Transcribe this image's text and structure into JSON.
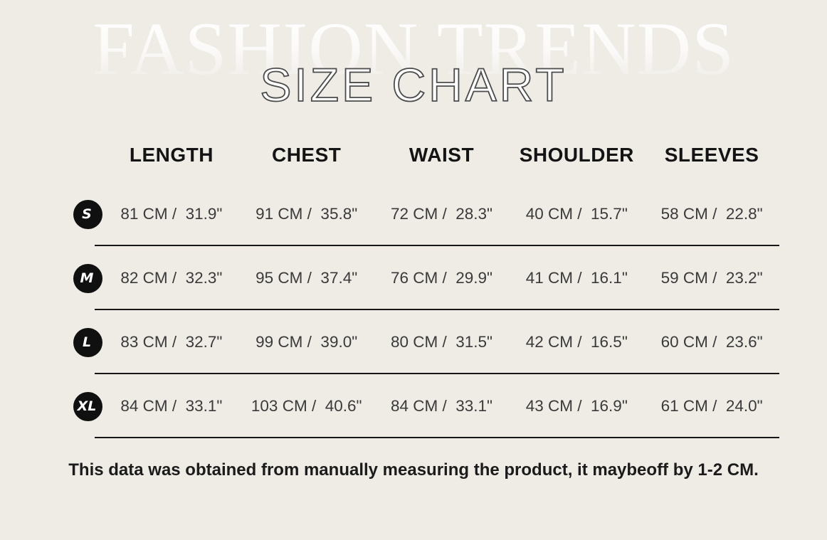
{
  "header": {
    "watermark": "FASHION TRENDS",
    "title": "SIZE CHART"
  },
  "table": {
    "columns": [
      "LENGTH",
      "CHEST",
      "WAIST",
      "SHOULDER",
      "SLEEVES"
    ],
    "rows": [
      {
        "size": "S",
        "values": [
          "81 CM /  31.9\"",
          "91 CM /  35.8\"",
          "72 CM /  28.3\"",
          "40 CM /  15.7\"",
          "58 CM /  22.8\""
        ]
      },
      {
        "size": "M",
        "values": [
          "82 CM /  32.3\"",
          "95 CM /  37.4\"",
          "76 CM /  29.9\"",
          "41 CM /  16.1\"",
          "59 CM /  23.2\""
        ]
      },
      {
        "size": "L",
        "values": [
          "83 CM /  32.7\"",
          "99 CM /  39.0\"",
          "80 CM /  31.5\"",
          "42 CM /  16.5\"",
          "60 CM /  23.6\""
        ]
      },
      {
        "size": "XL",
        "values": [
          "84 CM /  33.1\"",
          "103 CM /  40.6\"",
          "84 CM /  33.1\"",
          "43 CM /  16.9\"",
          "61 CM /  24.0\""
        ]
      }
    ]
  },
  "footer": {
    "note": "This data was obtained from manually measuring the product, it maybeoff by 1-2 CM."
  },
  "colors": {
    "background": "#efece6",
    "heading_outline": "#4c4c4c",
    "badge_background": "#101010",
    "badge_text": "#ffffff",
    "divider": "#161616",
    "body_text": "#3a3a3a"
  }
}
